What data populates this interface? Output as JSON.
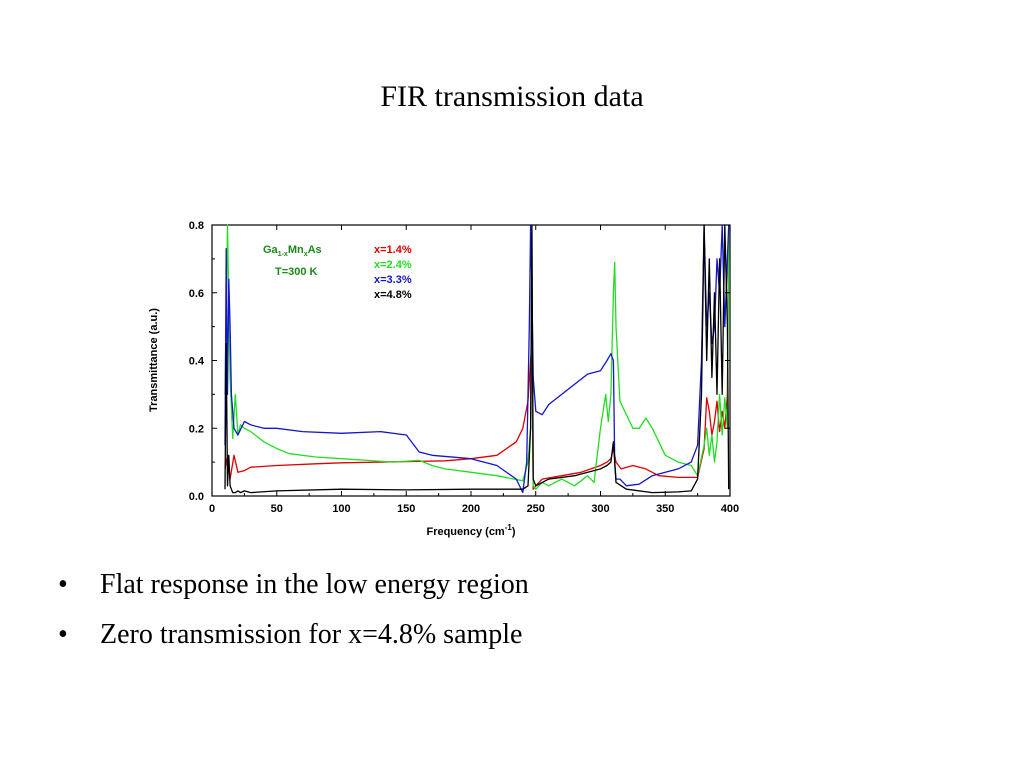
{
  "slide": {
    "title": "FIR transmission data",
    "bullets": [
      "Flat response in the low energy region",
      "Zero transmission for x=4.8% sample"
    ],
    "bullet_glyph": "•"
  },
  "chart_data": {
    "type": "line",
    "xlabel": "Frequency (cm-1)",
    "xlabel_main": "Frequency (cm",
    "xlabel_sup": "-1",
    "xlabel_close": ")",
    "ylabel": "Transmittance (a.u.)",
    "xlim": [
      0,
      400
    ],
    "ylim": [
      0,
      0.8
    ],
    "x_ticks": [
      0,
      50,
      100,
      150,
      200,
      250,
      300,
      350,
      400
    ],
    "x_tick_labels": [
      "0",
      "50",
      "100",
      "150",
      "200",
      "250",
      "300",
      "350",
      "400"
    ],
    "y_ticks": [
      0.0,
      0.2,
      0.4,
      0.6,
      0.8
    ],
    "y_tick_labels": [
      "0.0",
      "0.2",
      "0.4",
      "0.6",
      "0.8"
    ],
    "grid": false,
    "legend_position": "top-center",
    "annotation": {
      "material_parts": [
        "Ga",
        "1-x",
        "Mn",
        "x",
        "As"
      ],
      "material": "Ga1-xMnxAs",
      "temperature": "T=300 K",
      "color": "#1a8a1a"
    },
    "series": [
      {
        "name": "x=1.4%",
        "color": "#e00000",
        "x": [
          10,
          12,
          14,
          17,
          20,
          25,
          30,
          50,
          80,
          100,
          130,
          160,
          180,
          200,
          220,
          235,
          240,
          244,
          246,
          247,
          248,
          250,
          255,
          270,
          285,
          300,
          305,
          308,
          310,
          312,
          316,
          325,
          335,
          345,
          360,
          375,
          380,
          382,
          384,
          386,
          388,
          390,
          392,
          394,
          396,
          398,
          399
        ],
        "y": [
          0.08,
          0.12,
          0.05,
          0.12,
          0.07,
          0.075,
          0.085,
          0.09,
          0.095,
          0.098,
          0.1,
          0.102,
          0.104,
          0.11,
          0.12,
          0.16,
          0.2,
          0.28,
          0.4,
          0.45,
          0.02,
          0.03,
          0.05,
          0.06,
          0.07,
          0.09,
          0.1,
          0.11,
          0.14,
          0.1,
          0.08,
          0.09,
          0.08,
          0.06,
          0.055,
          0.055,
          0.14,
          0.29,
          0.25,
          0.18,
          0.22,
          0.28,
          0.19,
          0.25,
          0.2,
          0.3,
          0.8
        ]
      },
      {
        "name": "x=2.4%",
        "color": "#22dd22",
        "x": [
          10,
          12,
          14,
          16,
          18,
          20,
          22,
          25,
          30,
          40,
          50,
          60,
          80,
          100,
          120,
          140,
          160,
          170,
          180,
          200,
          220,
          240,
          244,
          246,
          247,
          248,
          250,
          255,
          260,
          270,
          280,
          290,
          295,
          300,
          304,
          306,
          308,
          310,
          311,
          312,
          315,
          320,
          325,
          330,
          335,
          340,
          350,
          360,
          370,
          375,
          380,
          382,
          384,
          386,
          388,
          390,
          392,
          394,
          396,
          398,
          399
        ],
        "y": [
          0.3,
          0.8,
          0.35,
          0.17,
          0.3,
          0.18,
          0.21,
          0.2,
          0.19,
          0.16,
          0.14,
          0.125,
          0.115,
          0.11,
          0.105,
          0.1,
          0.105,
          0.09,
          0.08,
          0.07,
          0.06,
          0.045,
          0.1,
          0.2,
          0.78,
          0.03,
          0.02,
          0.04,
          0.03,
          0.05,
          0.03,
          0.06,
          0.04,
          0.2,
          0.3,
          0.22,
          0.3,
          0.6,
          0.69,
          0.5,
          0.28,
          0.24,
          0.2,
          0.2,
          0.23,
          0.2,
          0.12,
          0.1,
          0.09,
          0.06,
          0.15,
          0.2,
          0.12,
          0.18,
          0.1,
          0.16,
          0.3,
          0.18,
          0.29,
          0.2,
          0.8
        ]
      },
      {
        "name": "x=3.3%",
        "color": "#1515cc",
        "x": [
          10,
          11,
          12,
          13,
          14,
          15,
          17,
          20,
          25,
          30,
          40,
          50,
          70,
          100,
          130,
          150,
          160,
          170,
          200,
          220,
          235,
          240,
          243,
          245,
          246,
          247,
          248,
          250,
          255,
          260,
          270,
          280,
          290,
          300,
          305,
          308,
          310,
          311,
          312,
          315,
          320,
          330,
          340,
          350,
          360,
          370,
          375,
          378,
          380,
          382,
          384,
          386,
          388,
          390,
          392,
          394,
          396,
          398,
          399
        ],
        "y": [
          0.15,
          0.73,
          0.3,
          0.64,
          0.5,
          0.3,
          0.2,
          0.18,
          0.22,
          0.21,
          0.2,
          0.2,
          0.19,
          0.185,
          0.19,
          0.18,
          0.13,
          0.12,
          0.11,
          0.09,
          0.05,
          0.01,
          0.1,
          0.5,
          0.8,
          0.6,
          0.35,
          0.25,
          0.24,
          0.27,
          0.3,
          0.33,
          0.36,
          0.37,
          0.4,
          0.42,
          0.4,
          0.1,
          0.05,
          0.05,
          0.03,
          0.035,
          0.06,
          0.07,
          0.08,
          0.1,
          0.15,
          0.4,
          0.8,
          0.5,
          0.6,
          0.45,
          0.5,
          0.7,
          0.6,
          0.8,
          0.5,
          0.7,
          0.8
        ]
      },
      {
        "name": "x=4.8%",
        "color": "#000000",
        "x": [
          10,
          11,
          12,
          13,
          14,
          15,
          16,
          18,
          20,
          22,
          25,
          30,
          50,
          100,
          150,
          200,
          240,
          244,
          246,
          247,
          248,
          250,
          260,
          280,
          300,
          305,
          308,
          310,
          312,
          320,
          340,
          360,
          370,
          375,
          378,
          380,
          382,
          384,
          386,
          388,
          390,
          392,
          394,
          396,
          398,
          399
        ],
        "y": [
          0.02,
          0.45,
          0.03,
          0.12,
          0.03,
          0.02,
          0.01,
          0.01,
          0.015,
          0.01,
          0.015,
          0.01,
          0.015,
          0.02,
          0.018,
          0.02,
          0.02,
          0.03,
          0.2,
          0.8,
          0.05,
          0.03,
          0.05,
          0.06,
          0.08,
          0.09,
          0.1,
          0.16,
          0.04,
          0.02,
          0.01,
          0.012,
          0.015,
          0.05,
          0.3,
          0.8,
          0.4,
          0.7,
          0.35,
          0.6,
          0.3,
          0.7,
          0.3,
          0.8,
          0.5,
          0.02
        ]
      }
    ]
  }
}
